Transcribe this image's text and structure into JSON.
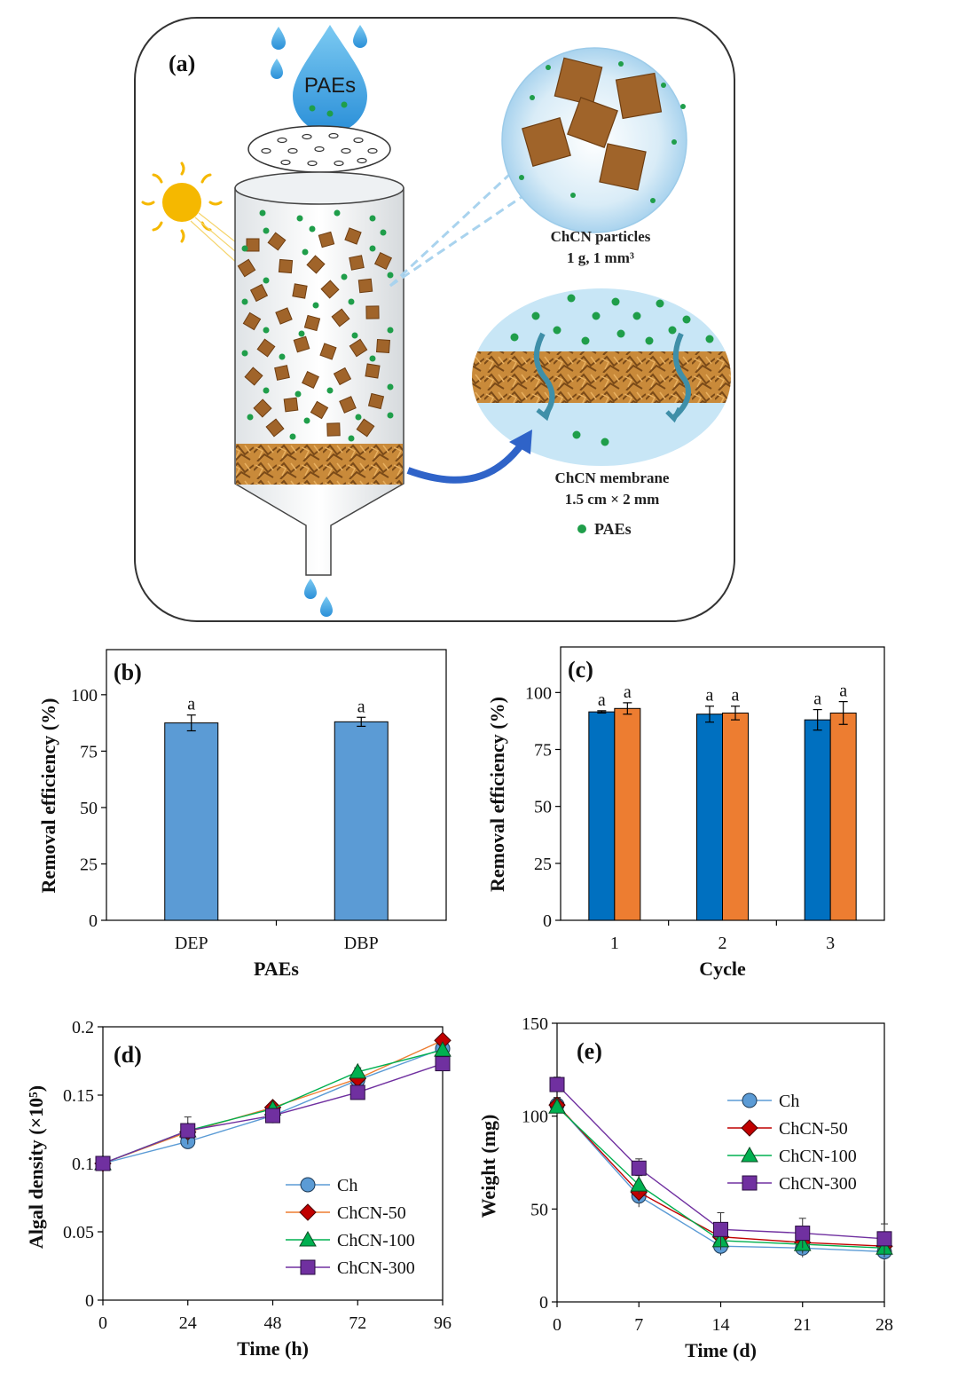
{
  "panel_a": {
    "label": "(a)",
    "drop_text": "PAEs",
    "particles_caption_line1": "ChCN particles",
    "particles_caption_line2": "1 g, 1 mm³",
    "membrane_caption_line1": "ChCN membrane",
    "membrane_caption_line2": "1.5 cm × 2 mm",
    "legend_text": "PAEs",
    "colors": {
      "drop": "#3aa3e0",
      "dot": "#1f9e4a",
      "cube": "#a0642a",
      "sun": "#f5b800",
      "arrow": "#2f63c8"
    }
  },
  "chart_data": [
    {
      "panel": "(b)",
      "type": "bar",
      "categories": [
        "DEP",
        "DBP"
      ],
      "values": [
        87.5,
        88.0
      ],
      "errors": [
        3.5,
        2.0
      ],
      "sig_labels": [
        "a",
        "a"
      ],
      "color": "#5b9bd5",
      "xlabel": "PAEs",
      "ylabel": "Removal efficiency (%)",
      "ylim": [
        0,
        120
      ],
      "yticks": [
        0,
        25,
        50,
        75,
        100
      ]
    },
    {
      "panel": "(c)",
      "type": "bar",
      "categories": [
        "1",
        "2",
        "3"
      ],
      "series": [
        {
          "values": [
            91.5,
            90.5,
            88.0
          ],
          "errors": [
            0.5,
            3.5,
            4.5
          ],
          "sig": [
            "a",
            "a",
            "a"
          ],
          "color": "#0070c0"
        },
        {
          "values": [
            93.0,
            91.0,
            91.0
          ],
          "errors": [
            2.5,
            3.0,
            5.0
          ],
          "sig": [
            "a",
            "a",
            "a"
          ],
          "color": "#ed7d31"
        }
      ],
      "xlabel": "Cycle",
      "ylabel": "Removal efficiency (%)",
      "ylim": [
        0,
        120
      ],
      "yticks": [
        0,
        25,
        50,
        75,
        100
      ]
    },
    {
      "panel": "(d)",
      "type": "line",
      "x": [
        0,
        24,
        48,
        72,
        96
      ],
      "series": [
        {
          "name": "Ch",
          "values": [
            0.1,
            0.116,
            0.135,
            0.161,
            0.184
          ],
          "errors": [
            0,
            0.004,
            0.002,
            0.003,
            0.003
          ],
          "color": "#5b9bd5",
          "marker": "circle"
        },
        {
          "name": "ChCN-50",
          "values": [
            0.1,
            0.123,
            0.141,
            0.162,
            0.19
          ],
          "errors": [
            0,
            0.003,
            0.002,
            0.003,
            0.002
          ],
          "color": "#c00000",
          "line": "#ed7d31",
          "marker": "diamond"
        },
        {
          "name": "ChCN-100",
          "values": [
            0.1,
            0.124,
            0.14,
            0.167,
            0.183
          ],
          "errors": [
            0,
            0.003,
            0.002,
            0.003,
            0.002
          ],
          "color": "#00b050",
          "marker": "triangle"
        },
        {
          "name": "ChCN-300",
          "values": [
            0.1,
            0.124,
            0.135,
            0.152,
            0.173
          ],
          "errors": [
            0,
            0.01,
            0.003,
            0.003,
            0.003
          ],
          "color": "#7030a0",
          "marker": "square"
        }
      ],
      "xlabel": "Time (h)",
      "ylabel": "Algal density (×10⁵)",
      "xlim": [
        0,
        96
      ],
      "ylim": [
        0,
        0.2
      ],
      "xticks": [
        0,
        24,
        48,
        72,
        96
      ],
      "yticks": [
        0,
        0.05,
        0.1,
        0.15,
        0.2
      ],
      "ytick_labels": [
        "0",
        "0.05",
        "0.1",
        "0.15",
        "0.2"
      ]
    },
    {
      "panel": "(e)",
      "type": "line",
      "x": [
        0,
        7,
        14,
        21,
        28
      ],
      "series": [
        {
          "name": "Ch",
          "values": [
            106,
            57,
            30,
            29,
            27
          ],
          "errors": [
            4,
            6,
            5,
            5,
            5
          ],
          "color": "#5b9bd5",
          "marker": "circle"
        },
        {
          "name": "ChCN-50",
          "values": [
            106,
            59,
            35,
            32,
            30
          ],
          "errors": [
            4,
            5,
            5,
            5,
            5
          ],
          "color": "#c00000",
          "line": "#c00000",
          "marker": "diamond"
        },
        {
          "name": "ChCN-100",
          "values": [
            105,
            63,
            33,
            31,
            29
          ],
          "errors": [
            4,
            5,
            5,
            5,
            5
          ],
          "color": "#00b050",
          "marker": "triangle"
        },
        {
          "name": "ChCN-300",
          "values": [
            117,
            72,
            39,
            37,
            34
          ],
          "errors": [
            4,
            5,
            9,
            8,
            8
          ],
          "color": "#7030a0",
          "marker": "square"
        }
      ],
      "xlabel": "Time (d)",
      "ylabel": "Weight (mg)",
      "xlim": [
        0,
        28
      ],
      "ylim": [
        0,
        150
      ],
      "xticks": [
        0,
        7,
        14,
        21,
        28
      ],
      "yticks": [
        0,
        50,
        100,
        150
      ]
    }
  ]
}
